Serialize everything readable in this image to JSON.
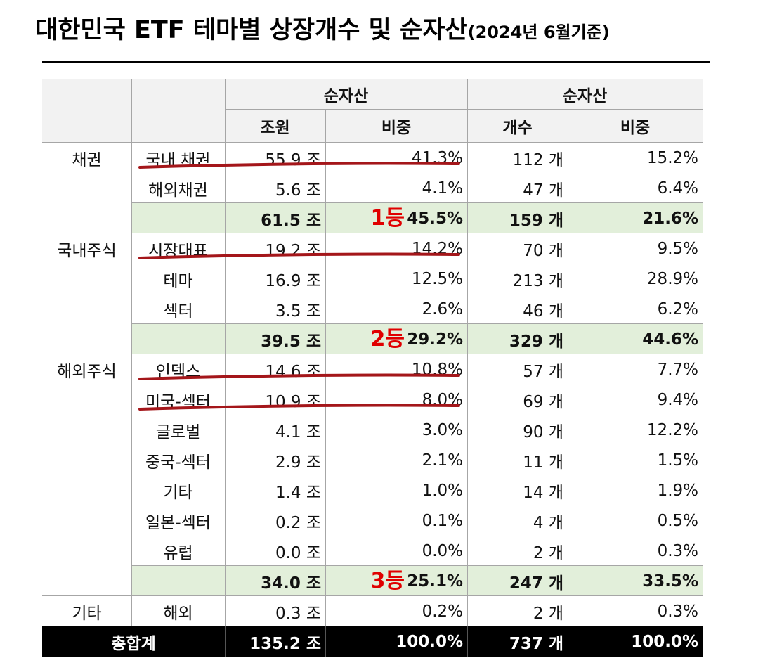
{
  "title": "대한민국 ETF 테마별 상장개수 및 순자산",
  "title_note": "(2024년 6월기준)",
  "table": {
    "header": {
      "groups": [
        "순자산",
        "순자산"
      ],
      "columns": [
        "조원",
        "비중",
        "개수",
        "비중"
      ]
    },
    "sections": [
      {
        "name": "채권",
        "rows": [
          {
            "name": "국내 채권",
            "values": [
              "55.9 조",
              "41.3%",
              "112 개",
              "15.2%"
            ],
            "underline": true
          },
          {
            "name": "해외채권",
            "values": [
              "5.6 조",
              "4.1%",
              "47 개",
              "6.4%"
            ]
          }
        ],
        "subtotal": [
          "61.5 조",
          "45.5%",
          "159 개",
          "21.6%"
        ],
        "rank": "1등"
      },
      {
        "name": "국내주식",
        "rows": [
          {
            "name": "시장대표",
            "values": [
              "19.2 조",
              "14.2%",
              "70 개",
              "9.5%"
            ],
            "underline": true
          },
          {
            "name": "테마",
            "values": [
              "16.9 조",
              "12.5%",
              "213 개",
              "28.9%"
            ]
          },
          {
            "name": "섹터",
            "values": [
              "3.5 조",
              "2.6%",
              "46 개",
              "6.2%"
            ]
          }
        ],
        "subtotal": [
          "39.5 조",
          "29.2%",
          "329 개",
          "44.6%"
        ],
        "rank": "2등"
      },
      {
        "name": "해외주식",
        "rows": [
          {
            "name": "인덱스",
            "values": [
              "14.6 조",
              "10.8%",
              "57 개",
              "7.7%"
            ],
            "underline": true
          },
          {
            "name": "미국-섹터",
            "values": [
              "10.9 조",
              "8.0%",
              "69 개",
              "9.4%"
            ],
            "underline": true
          },
          {
            "name": "글로벌",
            "values": [
              "4.1 조",
              "3.0%",
              "90 개",
              "12.2%"
            ]
          },
          {
            "name": "중국-섹터",
            "values": [
              "2.9 조",
              "2.1%",
              "11 개",
              "1.5%"
            ]
          },
          {
            "name": "기타",
            "values": [
              "1.4 조",
              "1.0%",
              "14 개",
              "1.9%"
            ]
          },
          {
            "name": "일본-섹터",
            "values": [
              "0.2 조",
              "0.1%",
              "4 개",
              "0.5%"
            ]
          },
          {
            "name": "유럽",
            "values": [
              "0.0 조",
              "0.0%",
              "2 개",
              "0.3%"
            ]
          }
        ],
        "subtotal": [
          "34.0 조",
          "25.1%",
          "247 개",
          "33.5%"
        ],
        "rank": "3등"
      },
      {
        "name": "기타",
        "rows": [
          {
            "name": "해외",
            "values": [
              "0.3 조",
              "0.2%",
              "2 개",
              "0.3%"
            ]
          }
        ]
      }
    ],
    "total": {
      "label": "총합계",
      "values": [
        "135.2 조",
        "100.0%",
        "737 개",
        "100.0%"
      ]
    }
  }
}
